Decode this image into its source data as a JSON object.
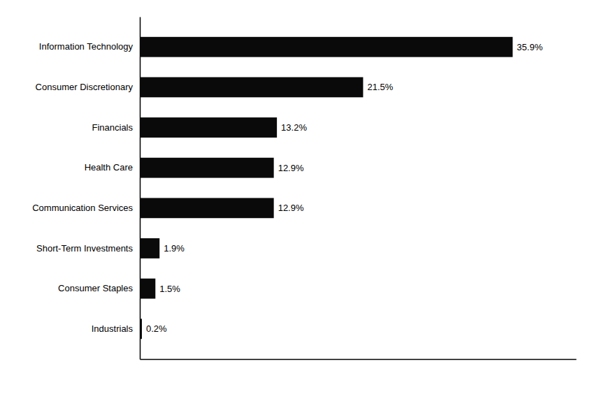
{
  "chart_data": {
    "type": "bar",
    "orientation": "horizontal",
    "categories": [
      "Industrials",
      "Consumer Staples",
      "Short-Term Investments",
      "Communication Services",
      "Health Care",
      "Financials",
      "Consumer Discretionary",
      "Information Technology"
    ],
    "values": [
      0.2,
      1.5,
      1.9,
      12.9,
      12.9,
      13.2,
      21.5,
      35.9
    ],
    "value_labels": [
      "0.2%",
      "1.5%",
      "1.9%",
      "12.9%",
      "12.9%",
      "13.2%",
      "21.5%",
      "35.9%"
    ],
    "color": "#0a0a0a",
    "xlim": [
      0,
      42
    ],
    "data_labels": true,
    "tick_labels": "y",
    "grid": false
  }
}
